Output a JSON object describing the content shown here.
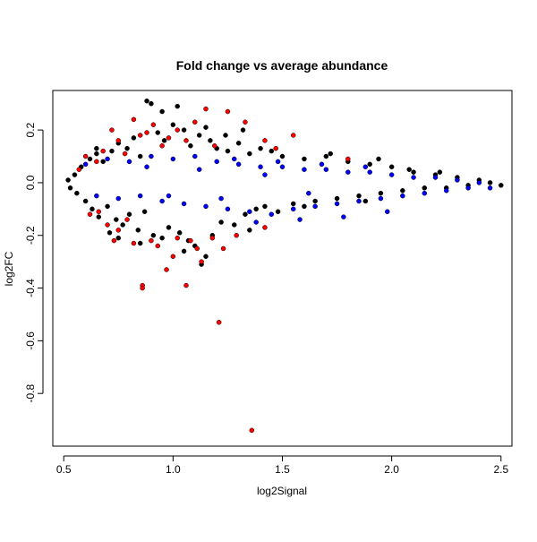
{
  "chart_data": {
    "type": "scatter",
    "title": "Fold change vs average abundance",
    "xlabel": "log2Signal",
    "ylabel": "log2FC",
    "xlim": [
      0.45,
      2.55
    ],
    "ylim": [
      -1.0,
      0.35
    ],
    "x_ticks": [
      0.5,
      1.0,
      1.5,
      2.0,
      2.5
    ],
    "x_tick_labels": [
      "0.5",
      "1.0",
      "1.5",
      "2.0",
      "2.5"
    ],
    "y_ticks": [
      0.2,
      0.0,
      -0.2,
      -0.4,
      -0.6,
      -0.8
    ],
    "y_tick_labels": [
      "0.2",
      "0.0",
      "-0.2",
      "-0.4",
      "-0.6",
      "-0.8"
    ],
    "grid": false,
    "legend": "none",
    "series": [
      {
        "color": "#000000",
        "points": [
          [
            0.52,
            0.01
          ],
          [
            0.53,
            -0.02
          ],
          [
            0.55,
            0.03
          ],
          [
            0.56,
            -0.04
          ],
          [
            0.58,
            0.06
          ],
          [
            0.6,
            -0.07
          ],
          [
            0.62,
            0.09
          ],
          [
            0.63,
            -0.1
          ],
          [
            0.65,
            0.11
          ],
          [
            0.66,
            -0.13
          ],
          [
            0.68,
            0.08
          ],
          [
            0.7,
            -0.09
          ],
          [
            0.72,
            0.12
          ],
          [
            0.74,
            -0.14
          ],
          [
            0.75,
            0.15
          ],
          [
            0.77,
            -0.16
          ],
          [
            0.79,
            0.13
          ],
          [
            0.8,
            -0.12
          ],
          [
            0.82,
            0.17
          ],
          [
            0.84,
            -0.18
          ],
          [
            0.85,
            0.1
          ],
          [
            0.87,
            -0.11
          ],
          [
            0.88,
            0.31
          ],
          [
            0.9,
            0.3
          ],
          [
            0.91,
            -0.2
          ],
          [
            0.93,
            0.19
          ],
          [
            0.95,
            -0.21
          ],
          [
            0.96,
            0.16
          ],
          [
            0.98,
            -0.17
          ],
          [
            1.0,
            0.22
          ],
          [
            1.02,
            0.29
          ],
          [
            1.03,
            -0.19
          ],
          [
            1.05,
            0.2
          ],
          [
            1.07,
            -0.22
          ],
          [
            1.08,
            0.14
          ],
          [
            1.1,
            -0.24
          ],
          [
            1.12,
            0.18
          ],
          [
            1.13,
            -0.31
          ],
          [
            1.15,
            -0.28
          ],
          [
            1.17,
            0.16
          ],
          [
            1.18,
            -0.2
          ],
          [
            1.2,
            0.13
          ],
          [
            1.22,
            -0.15
          ],
          [
            1.25,
            0.12
          ],
          [
            1.28,
            -0.16
          ],
          [
            1.3,
            0.15
          ],
          [
            1.33,
            -0.12
          ],
          [
            1.35,
            0.11
          ],
          [
            1.38,
            -0.1
          ],
          [
            1.4,
            0.13
          ],
          [
            1.42,
            -0.09
          ],
          [
            1.45,
            0.12
          ],
          [
            1.48,
            -0.11
          ],
          [
            1.5,
            0.1
          ],
          [
            1.55,
            -0.08
          ],
          [
            1.6,
            0.09
          ],
          [
            1.65,
            -0.07
          ],
          [
            1.7,
            0.1
          ],
          [
            1.75,
            -0.06
          ],
          [
            1.8,
            0.08
          ],
          [
            1.85,
            -0.05
          ],
          [
            1.9,
            0.07
          ],
          [
            1.95,
            -0.04
          ],
          [
            2.0,
            0.06
          ],
          [
            2.05,
            -0.03
          ],
          [
            2.1,
            0.04
          ],
          [
            2.15,
            -0.02
          ],
          [
            2.2,
            0.03
          ],
          [
            2.25,
            -0.02
          ],
          [
            2.3,
            0.02
          ],
          [
            2.35,
            -0.01
          ],
          [
            2.4,
            0.01
          ],
          [
            2.45,
            0.0
          ],
          [
            2.5,
            -0.01
          ],
          [
            0.95,
            0.27
          ],
          [
            1.05,
            -0.26
          ],
          [
            0.85,
            -0.23
          ],
          [
            0.65,
            0.13
          ],
          [
            0.71,
            -0.19
          ],
          [
            1.32,
            0.2
          ],
          [
            1.6,
            -0.09
          ],
          [
            1.72,
            0.11
          ],
          [
            1.88,
            -0.07
          ],
          [
            1.94,
            0.09
          ],
          [
            2.08,
            0.05
          ],
          [
            2.22,
            0.04
          ],
          [
            0.75,
            -0.21
          ],
          [
            1.15,
            0.21
          ],
          [
            1.24,
            0.18
          ],
          [
            1.35,
            -0.18
          ]
        ]
      },
      {
        "color": "#ff0000",
        "points": [
          [
            0.65,
            0.08
          ],
          [
            0.68,
            0.12
          ],
          [
            0.72,
            0.2
          ],
          [
            0.75,
            0.16
          ],
          [
            0.78,
            0.11
          ],
          [
            0.82,
            0.24
          ],
          [
            0.85,
            0.18
          ],
          [
            0.88,
            0.19
          ],
          [
            0.91,
            0.22
          ],
          [
            0.95,
            0.14
          ],
          [
            0.98,
            0.17
          ],
          [
            1.02,
            0.2
          ],
          [
            1.06,
            0.16
          ],
          [
            1.1,
            0.23
          ],
          [
            1.15,
            0.28
          ],
          [
            1.19,
            0.14
          ],
          [
            1.25,
            0.27
          ],
          [
            1.33,
            0.23
          ],
          [
            1.42,
            0.16
          ],
          [
            1.47,
            0.13
          ],
          [
            1.55,
            0.18
          ],
          [
            1.8,
            0.09
          ],
          [
            0.62,
            -0.12
          ],
          [
            0.66,
            -0.11
          ],
          [
            0.7,
            -0.16
          ],
          [
            0.75,
            -0.18
          ],
          [
            0.79,
            -0.14
          ],
          [
            0.82,
            -0.23
          ],
          [
            0.86,
            -0.39
          ],
          [
            0.86,
            -0.4
          ],
          [
            0.9,
            -0.22
          ],
          [
            0.93,
            -0.24
          ],
          [
            0.97,
            -0.33
          ],
          [
            1.0,
            -0.28
          ],
          [
            1.02,
            -0.21
          ],
          [
            1.06,
            -0.39
          ],
          [
            1.08,
            -0.22
          ],
          [
            1.11,
            -0.25
          ],
          [
            1.13,
            -0.3
          ],
          [
            1.18,
            -0.21
          ],
          [
            1.21,
            -0.53
          ],
          [
            1.23,
            -0.25
          ],
          [
            1.29,
            -0.2
          ],
          [
            1.36,
            -0.94
          ],
          [
            1.42,
            -0.17
          ],
          [
            0.57,
            0.05
          ],
          [
            0.6,
            0.1
          ],
          [
            0.73,
            -0.22
          ]
        ]
      },
      {
        "color": "#0000ff",
        "points": [
          [
            0.6,
            0.07
          ],
          [
            0.65,
            -0.05
          ],
          [
            0.7,
            0.09
          ],
          [
            0.75,
            -0.06
          ],
          [
            0.8,
            0.08
          ],
          [
            0.85,
            -0.05
          ],
          [
            0.9,
            0.1
          ],
          [
            0.95,
            -0.07
          ],
          [
            1.0,
            0.09
          ],
          [
            1.05,
            -0.08
          ],
          [
            1.1,
            0.1
          ],
          [
            1.15,
            -0.09
          ],
          [
            1.2,
            0.08
          ],
          [
            1.25,
            -0.1
          ],
          [
            1.3,
            0.07
          ],
          [
            1.35,
            -0.11
          ],
          [
            1.4,
            0.06
          ],
          [
            1.45,
            -0.12
          ],
          [
            1.5,
            0.06
          ],
          [
            1.55,
            -0.1
          ],
          [
            1.6,
            0.05
          ],
          [
            1.65,
            -0.09
          ],
          [
            1.7,
            0.05
          ],
          [
            1.75,
            -0.08
          ],
          [
            1.8,
            0.04
          ],
          [
            1.85,
            -0.07
          ],
          [
            1.9,
            0.04
          ],
          [
            1.95,
            -0.06
          ],
          [
            2.0,
            0.03
          ],
          [
            2.05,
            -0.05
          ],
          [
            2.1,
            0.02
          ],
          [
            2.15,
            -0.04
          ],
          [
            2.2,
            0.02
          ],
          [
            2.25,
            -0.03
          ],
          [
            2.3,
            0.01
          ],
          [
            2.35,
            -0.02
          ],
          [
            2.4,
            0.0
          ],
          [
            2.45,
            -0.02
          ],
          [
            0.88,
            0.06
          ],
          [
            0.98,
            -0.05
          ],
          [
            1.28,
            0.09
          ],
          [
            1.38,
            -0.15
          ],
          [
            1.48,
            0.08
          ],
          [
            1.58,
            -0.14
          ],
          [
            1.68,
            0.07
          ],
          [
            1.78,
            -0.13
          ],
          [
            1.88,
            0.06
          ],
          [
            1.98,
            -0.11
          ],
          [
            1.12,
            0.05
          ],
          [
            1.22,
            -0.06
          ],
          [
            1.42,
            0.03
          ],
          [
            1.62,
            -0.04
          ]
        ]
      }
    ]
  }
}
